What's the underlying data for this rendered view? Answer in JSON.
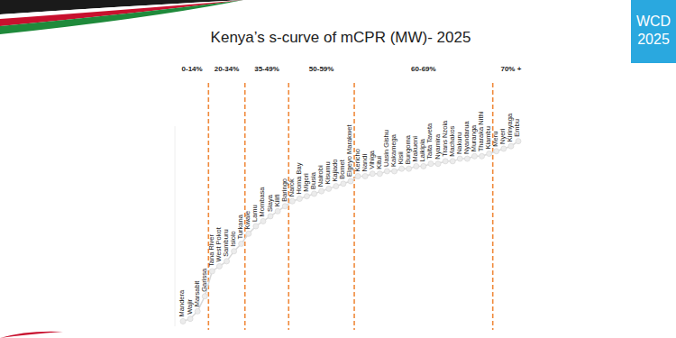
{
  "header": {
    "badge": [
      "WCD",
      "2025"
    ]
  },
  "chart_data": {
    "type": "line",
    "title": "Kenya’s s-curve of mCPR (MW)- 2025",
    "categories": [
      "Mandera",
      "Wajir",
      "Marsabit",
      "Garissa",
      "Tana River",
      "West Pokot",
      "Samburu",
      "Isiolo",
      "Turkana",
      "Kwale",
      "Lamu",
      "Mombasa",
      "Siaya",
      "Kilifi",
      "Baringo",
      "Narok",
      "Homa Bay",
      "Migori",
      "Busia",
      "Nairobi",
      "Kisumu",
      "Kajiado",
      "Bomet",
      "Elgeyo Marakwet",
      "Kericho",
      "Nandi",
      "Vihiga",
      "Kitui",
      "Uasin Gishu",
      "Kakamega",
      "Kisii",
      "Bungoma",
      "Makueni",
      "Laikipia",
      "Taita Taveta",
      "Nyamira",
      "Trans Nzoia",
      "Machakos",
      "Nakuru",
      "Nyandarua",
      "Muranga",
      "Tharaka Nithi",
      "Kiambu",
      "Meru",
      "Nyeri",
      "Kirinyaga",
      "Embu"
    ],
    "values": [
      2,
      3,
      6,
      12,
      22,
      24,
      26,
      30,
      33,
      37,
      40,
      42,
      44,
      46,
      48,
      50,
      51,
      52,
      53,
      54,
      55,
      56,
      57,
      58,
      60,
      60,
      61,
      61,
      62,
      62,
      63,
      63,
      64,
      64,
      65,
      65,
      66,
      66,
      67,
      67,
      68,
      68,
      69,
      70,
      71,
      72,
      74
    ],
    "color": "#d9d9d9",
    "marker": "circle",
    "line_style": "solid",
    "ylim": [
      0,
      80
    ],
    "tick_labels": "x",
    "grid": false,
    "bands": [
      {
        "label": "0-14%",
        "min": 0,
        "max": 14
      },
      {
        "label": "20-34%",
        "min": 20,
        "max": 34
      },
      {
        "label": "35-49%",
        "min": 35,
        "max": 49
      },
      {
        "label": "50-59%",
        "min": 50,
        "max": 59
      },
      {
        "label": "60-69%",
        "min": 60,
        "max": 69
      },
      {
        "label": "70% +",
        "min": 70
      }
    ]
  }
}
